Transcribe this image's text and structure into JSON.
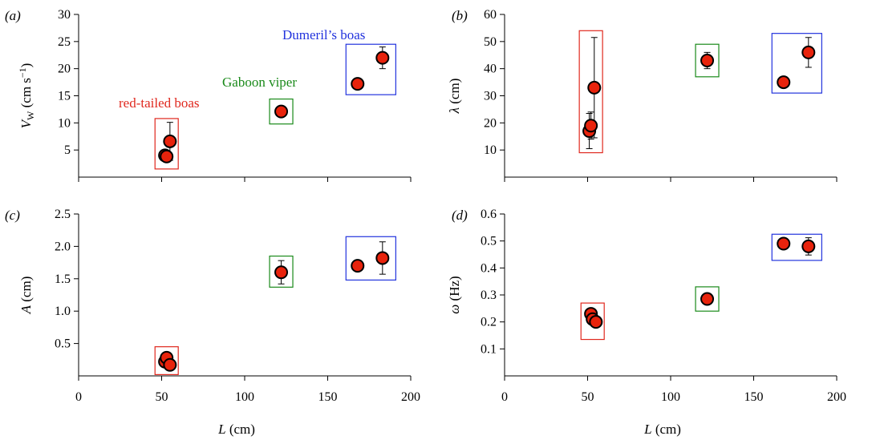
{
  "colors": {
    "marker_fill": "#e8230c",
    "marker_stroke": "#000000",
    "red": "#e0281e",
    "green": "#1a8a1a",
    "blue": "#2233dd"
  },
  "chart_data": [
    {
      "type": "scatter",
      "panel": "(a)",
      "ylabel_main": "V",
      "ylabel_sub": "W",
      "ylabel_unit": "(cm s",
      "ylabel_exp": "−1",
      "ylabel_close": ")",
      "xlabel": "",
      "xlim": [
        0,
        200
      ],
      "ylim": [
        0,
        30
      ],
      "yticks": [
        "5",
        "10",
        "15",
        "20",
        "25",
        "30"
      ],
      "xticks": [],
      "points": [
        {
          "x": 52,
          "y": 4.0,
          "err": 1.0
        },
        {
          "x": 53,
          "y": 3.8,
          "err": 1.0
        },
        {
          "x": 55,
          "y": 6.6,
          "err": 3.5
        },
        {
          "x": 122,
          "y": 12.1,
          "err": 0
        },
        {
          "x": 168,
          "y": 17.2,
          "err": 0
        },
        {
          "x": 183,
          "y": 22.0,
          "err": 2.0
        }
      ],
      "boxes": [
        {
          "group": "red",
          "x0": 46,
          "x1": 60,
          "y0": 1.5,
          "y1": 10.8
        },
        {
          "group": "green",
          "x0": 115,
          "x1": 129,
          "y0": 9.8,
          "y1": 14.4
        },
        {
          "group": "blue",
          "x0": 161,
          "x1": 191,
          "y0": 15.2,
          "y1": 24.5
        }
      ],
      "group_labels": [
        {
          "group": "red",
          "text": "red-tailed boas"
        },
        {
          "group": "green",
          "text": "Gaboon viper"
        },
        {
          "group": "blue",
          "text": "Dumeril’s boas"
        }
      ]
    },
    {
      "type": "scatter",
      "panel": "(b)",
      "ylabel_main": "λ",
      "ylabel_unit": "(cm)",
      "xlabel": "",
      "xlim": [
        0,
        200
      ],
      "ylim": [
        0,
        60
      ],
      "yticks": [
        "10",
        "20",
        "30",
        "40",
        "50",
        "60"
      ],
      "xticks": [],
      "points": [
        {
          "x": 51,
          "y": 17.0,
          "err": 6.5
        },
        {
          "x": 52,
          "y": 19.0,
          "err": 5.0
        },
        {
          "x": 54,
          "y": 33.0,
          "err": 18.5
        },
        {
          "x": 122,
          "y": 43.0,
          "err": 3.0
        },
        {
          "x": 168,
          "y": 35.0,
          "err": 2.0
        },
        {
          "x": 183,
          "y": 46.0,
          "err": 5.5
        }
      ],
      "boxes": [
        {
          "group": "red",
          "x0": 45,
          "x1": 59,
          "y0": 9,
          "y1": 54
        },
        {
          "group": "green",
          "x0": 115,
          "x1": 129,
          "y0": 37,
          "y1": 49
        },
        {
          "group": "blue",
          "x0": 161,
          "x1": 191,
          "y0": 31,
          "y1": 53
        }
      ]
    },
    {
      "type": "scatter",
      "panel": "(c)",
      "ylabel_main": "A",
      "ylabel_unit": "(cm)",
      "xlabel_main": "L",
      "xlabel_unit": "(cm)",
      "xlim": [
        0,
        200
      ],
      "ylim": [
        0,
        2.5
      ],
      "yticks": [
        "0.5",
        "1.0",
        "1.5",
        "2.0",
        "2.5"
      ],
      "xticks": [
        "0",
        "50",
        "100",
        "150",
        "200"
      ],
      "points": [
        {
          "x": 52,
          "y": 0.22,
          "err": 0
        },
        {
          "x": 53,
          "y": 0.28,
          "err": 0
        },
        {
          "x": 55,
          "y": 0.17,
          "err": 0
        },
        {
          "x": 122,
          "y": 1.6,
          "err": 0.18
        },
        {
          "x": 168,
          "y": 1.7,
          "err": 0
        },
        {
          "x": 183,
          "y": 1.82,
          "err": 0.25
        }
      ],
      "boxes": [
        {
          "group": "red",
          "x0": 46,
          "x1": 60,
          "y0": 0.02,
          "y1": 0.45
        },
        {
          "group": "green",
          "x0": 115,
          "x1": 129,
          "y0": 1.37,
          "y1": 1.85
        },
        {
          "group": "blue",
          "x0": 161,
          "x1": 191,
          "y0": 1.48,
          "y1": 2.15
        }
      ]
    },
    {
      "type": "scatter",
      "panel": "(d)",
      "ylabel_main": "ω",
      "ylabel_unit": "(Hz)",
      "xlabel_main": "L",
      "xlabel_unit": "(cm)",
      "xlim": [
        0,
        200
      ],
      "ylim": [
        0,
        0.6
      ],
      "yticks": [
        "0.1",
        "0.2",
        "0.3",
        "0.4",
        "0.5",
        "0.6"
      ],
      "xticks": [
        "0",
        "50",
        "100",
        "150",
        "200"
      ],
      "points": [
        {
          "x": 52,
          "y": 0.23,
          "err": 0
        },
        {
          "x": 53,
          "y": 0.21,
          "err": 0
        },
        {
          "x": 55,
          "y": 0.2,
          "err": 0
        },
        {
          "x": 122,
          "y": 0.285,
          "err": 0
        },
        {
          "x": 168,
          "y": 0.49,
          "err": 0
        },
        {
          "x": 183,
          "y": 0.48,
          "err": 0.032
        }
      ],
      "boxes": [
        {
          "group": "red",
          "x0": 46,
          "x1": 60,
          "y0": 0.135,
          "y1": 0.27
        },
        {
          "group": "green",
          "x0": 115,
          "x1": 129,
          "y0": 0.24,
          "y1": 0.33
        },
        {
          "group": "blue",
          "x0": 161,
          "x1": 191,
          "y0": 0.428,
          "y1": 0.525
        }
      ]
    }
  ]
}
